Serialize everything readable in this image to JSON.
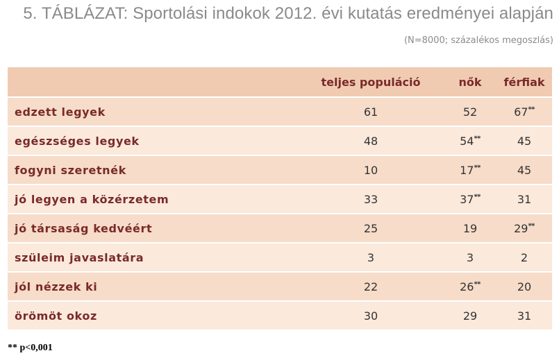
{
  "title": "5. TÁBLÁZAT: Sportolási indokok 2012. évi kutatás eredményei alapján",
  "subtitle": "(N=8000; százalékos megoszlás)",
  "columns": [
    "teljes populáció",
    "nők",
    "férfiak"
  ],
  "rows": [
    {
      "label": "edzett legyek",
      "values": [
        "61",
        "52",
        "67"
      ],
      "sig": [
        "",
        "",
        "**"
      ]
    },
    {
      "label": "egészséges legyek",
      "values": [
        "48",
        "54",
        "45"
      ],
      "sig": [
        "",
        "**",
        ""
      ]
    },
    {
      "label": "fogyni szeretnék",
      "values": [
        "10",
        "17",
        "45"
      ],
      "sig": [
        "",
        "**",
        ""
      ]
    },
    {
      "label": "jó legyen a közérzetem",
      "values": [
        "33",
        "37",
        "31"
      ],
      "sig": [
        "",
        "**",
        ""
      ]
    },
    {
      "label": "jó társaság kedvéért",
      "values": [
        "25",
        "19",
        "29"
      ],
      "sig": [
        "",
        "",
        "**"
      ]
    },
    {
      "label": "szüleim javaslatára",
      "values": [
        "3",
        "3",
        "2"
      ],
      "sig": [
        "",
        "",
        ""
      ]
    },
    {
      "label": "jól nézzek ki",
      "values": [
        "22",
        "26",
        "20"
      ],
      "sig": [
        "",
        "**",
        ""
      ]
    },
    {
      "label": "örömöt okoz",
      "values": [
        "30",
        "29",
        "31"
      ],
      "sig": [
        "",
        "",
        ""
      ]
    }
  ],
  "footnote": "** p<0,001",
  "colors": {
    "header_bg": "#f0cbb1",
    "row_light": "#fbe9dc",
    "row_dark": "#f6dcc9",
    "label_text": "#7a2a2a",
    "title_text": "#8a8a8a"
  }
}
